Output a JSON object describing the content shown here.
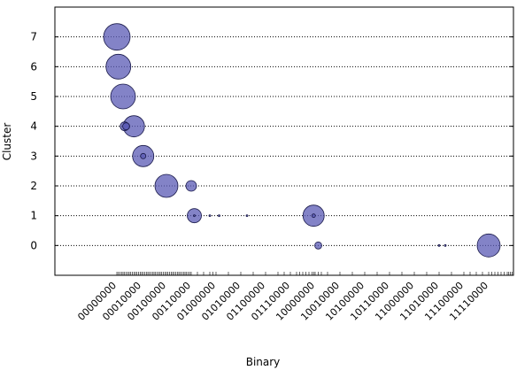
{
  "chart_data": {
    "type": "scatter",
    "title": "",
    "xlabel": "Binary",
    "ylabel": "Cluster",
    "xlim": [
      -40,
      256
    ],
    "ylim": [
      -1,
      8
    ],
    "grid": "horizontal-dotted",
    "marker_color": "#5a5ab4",
    "y_ticks": [
      0,
      1,
      2,
      3,
      4,
      5,
      6,
      7
    ],
    "x_tick_labels": [
      {
        "x": 0,
        "label": "00000000"
      },
      {
        "x": 16,
        "label": "00010000"
      },
      {
        "x": 32,
        "label": "00100000"
      },
      {
        "x": 48,
        "label": "00110000"
      },
      {
        "x": 64,
        "label": "01000000"
      },
      {
        "x": 80,
        "label": "01010000"
      },
      {
        "x": 96,
        "label": "01100000"
      },
      {
        "x": 112,
        "label": "01110000"
      },
      {
        "x": 128,
        "label": "10000000"
      },
      {
        "x": 144,
        "label": "10010000"
      },
      {
        "x": 160,
        "label": "10100000"
      },
      {
        "x": 176,
        "label": "10110000"
      },
      {
        "x": 192,
        "label": "11000000"
      },
      {
        "x": 208,
        "label": "11010000"
      },
      {
        "x": 224,
        "label": "11100000"
      },
      {
        "x": 240,
        "label": "11110000"
      }
    ],
    "minor_ticks": [
      0,
      1,
      2,
      3,
      4,
      5,
      6,
      7,
      8,
      9,
      10,
      11,
      12,
      13,
      14,
      15,
      16,
      17,
      18,
      19,
      20,
      21,
      22,
      23,
      24,
      25,
      26,
      27,
      28,
      29,
      30,
      31,
      32,
      33,
      34,
      35,
      36,
      37,
      38,
      39,
      40,
      41,
      42,
      43,
      44,
      45,
      46,
      47,
      48,
      52,
      56,
      60,
      62,
      64,
      72,
      80,
      88,
      96,
      104,
      108,
      112,
      116,
      118,
      120,
      122,
      124,
      126,
      127,
      128,
      130,
      132,
      136,
      144,
      152,
      160,
      168,
      176,
      184,
      192,
      200,
      208,
      216,
      224,
      228,
      232,
      236,
      240,
      242,
      244,
      246,
      248,
      250,
      252,
      253,
      254,
      255
    ],
    "points": [
      {
        "x": 0,
        "y": 7,
        "size": 15
      },
      {
        "x": 1,
        "y": 6,
        "size": 14
      },
      {
        "x": 4,
        "y": 5,
        "size": 14
      },
      {
        "x": 5,
        "y": 4,
        "size": 5
      },
      {
        "x": 6,
        "y": 4,
        "size": 4
      },
      {
        "x": 11,
        "y": 4,
        "size": 12
      },
      {
        "x": 17,
        "y": 3,
        "size": 12
      },
      {
        "x": 17,
        "y": 3,
        "size": 3
      },
      {
        "x": 32,
        "y": 2,
        "size": 13
      },
      {
        "x": 48,
        "y": 2,
        "size": 6
      },
      {
        "x": 50,
        "y": 1,
        "size": 8
      },
      {
        "x": 50,
        "y": 1,
        "size": 1
      },
      {
        "x": 60,
        "y": 1,
        "size": 1
      },
      {
        "x": 66,
        "y": 1,
        "size": 1
      },
      {
        "x": 84,
        "y": 1,
        "size": 1
      },
      {
        "x": 127,
        "y": 1,
        "size": 12
      },
      {
        "x": 127,
        "y": 1,
        "size": 2
      },
      {
        "x": 130,
        "y": 0,
        "size": 4
      },
      {
        "x": 208,
        "y": 0,
        "size": 1
      },
      {
        "x": 212,
        "y": 0,
        "size": 1
      },
      {
        "x": 240,
        "y": 0,
        "size": 13
      }
    ]
  }
}
